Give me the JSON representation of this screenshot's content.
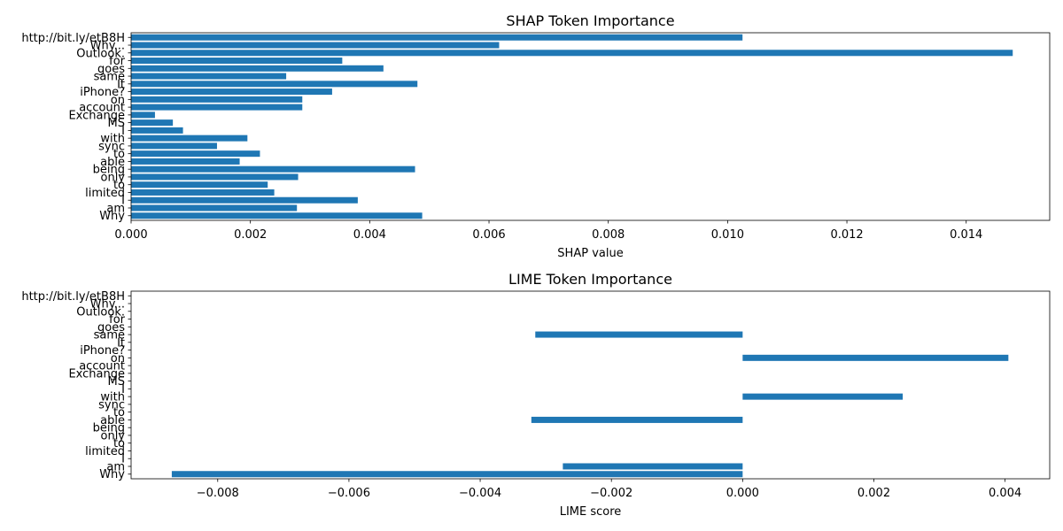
{
  "chart_data": [
    {
      "type": "bar",
      "orientation": "horizontal",
      "title": "SHAP Token Importance",
      "xlabel": "SHAP value",
      "ylabel": "",
      "xlim": [
        0.0,
        0.0154
      ],
      "xticks": [
        "0.000",
        "0.002",
        "0.004",
        "0.006",
        "0.008",
        "0.010",
        "0.012",
        "0.014"
      ],
      "xtick_values": [
        0.0,
        0.002,
        0.004,
        0.006,
        0.008,
        0.01,
        0.012,
        0.014
      ],
      "categories": [
        "Why",
        "am",
        "I",
        "limited",
        "to",
        "only",
        "being",
        "able",
        "to",
        "sync",
        "with",
        "I",
        "MS",
        "Exchange",
        "account",
        "on",
        "iPhone?",
        "It",
        "same",
        "goes",
        "for",
        "Outlook.",
        "Why...",
        "http://bit.ly/etB8H"
      ],
      "values": [
        0.00488,
        0.00278,
        0.0038,
        0.0024,
        0.00229,
        0.0028,
        0.00476,
        0.00182,
        0.00216,
        0.00144,
        0.00195,
        0.00087,
        0.0007,
        0.0004,
        0.00287,
        0.00287,
        0.00337,
        0.0048,
        0.0026,
        0.00423,
        0.00354,
        0.01478,
        0.00617,
        0.01025
      ],
      "color": "#1f77b4",
      "grid": false,
      "legend": "none"
    },
    {
      "type": "bar",
      "orientation": "horizontal",
      "title": "LIME Token Importance",
      "xlabel": "LIME score",
      "ylabel": "",
      "xlim": [
        -0.00932,
        0.00468
      ],
      "xticks": [
        "−0.008",
        "−0.006",
        "−0.004",
        "−0.002",
        "0.000",
        "0.002",
        "0.004"
      ],
      "xtick_values": [
        -0.008,
        -0.006,
        -0.004,
        -0.002,
        0.0,
        0.002,
        0.004
      ],
      "categories": [
        "Why",
        "am",
        "I",
        "limited",
        "to",
        "only",
        "being",
        "able",
        "to",
        "sync",
        "with",
        "I",
        "MS",
        "Exchange",
        "account",
        "on",
        "iPhone?",
        "It",
        "same",
        "goes",
        "for",
        "Outlook.",
        "Why...",
        "http://bit.ly/etB8H"
      ],
      "values": [
        -0.0087,
        -0.00274,
        0,
        0,
        0,
        0,
        0,
        -0.00322,
        0,
        0,
        0.00244,
        0,
        0,
        0,
        0,
        0.00405,
        0,
        0,
        -0.00316,
        0,
        0,
        0,
        0,
        0
      ],
      "color": "#1f77b4",
      "grid": false,
      "legend": "none"
    }
  ]
}
